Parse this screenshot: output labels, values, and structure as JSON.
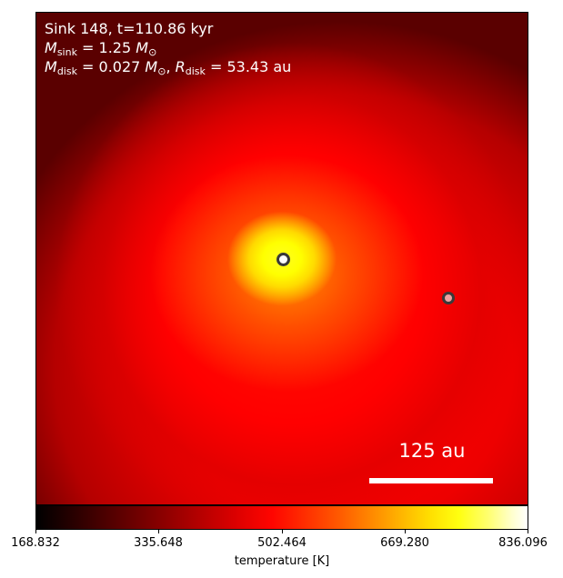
{
  "title_line": "Sink 148, t=110.86 kyr",
  "sink_mass": {
    "symbol": "M",
    "subscript": "sink",
    "equals": " = 1.25 ",
    "unit_symbol": "M",
    "unit_subscript": "⊙"
  },
  "disk": {
    "mass_symbol": "M",
    "mass_subscript": "disk",
    "mass_equals": " = 0.027 ",
    "mass_unit": "M",
    "mass_unit_subscript": "⊙",
    "separator": ",  ",
    "radius_symbol": "R",
    "radius_subscript": "disk",
    "radius_equals": " = 53.43 au"
  },
  "scale_bar_label": "125 au",
  "colorbar": {
    "label": "temperature [K]",
    "min": 168.832,
    "max": 836.096,
    "ticks": [
      "168.832",
      "335.648",
      "502.464",
      "669.280",
      "836.096"
    ],
    "colormap": "hot"
  },
  "sinks": [
    {
      "name": "primary",
      "fill": "#ffffff",
      "edge": "#3a3a3a"
    },
    {
      "name": "secondary",
      "fill": "#f0a0a0",
      "edge": "#3a3a3a"
    }
  ]
}
